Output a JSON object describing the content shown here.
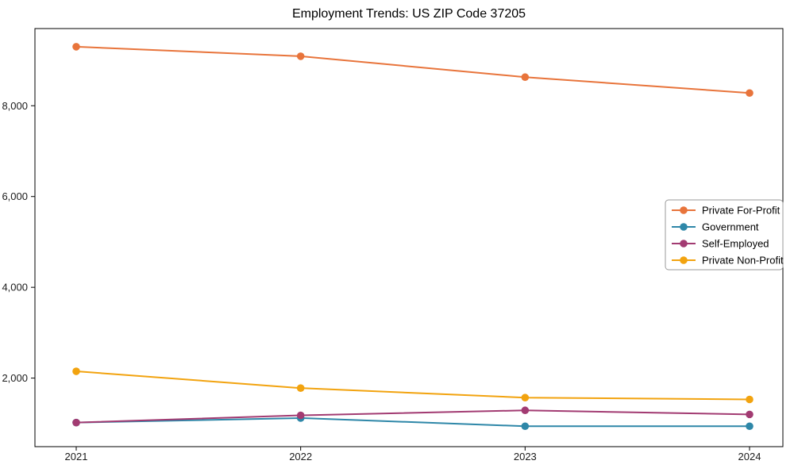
{
  "chart_data": {
    "type": "line",
    "title": "Employment Trends: US ZIP Code 37205",
    "xlabel": "",
    "ylabel": "",
    "categories": [
      "2021",
      "2022",
      "2023",
      "2024"
    ],
    "series": [
      {
        "name": "Private For-Profit",
        "color": "#e8743b",
        "values": [
          9300,
          9090,
          8630,
          8280
        ]
      },
      {
        "name": "Government",
        "color": "#2e87a8",
        "values": [
          1020,
          1120,
          940,
          940
        ]
      },
      {
        "name": "Self-Employed",
        "color": "#a23b72",
        "values": [
          1020,
          1180,
          1290,
          1200
        ]
      },
      {
        "name": "Private Non-Profit",
        "color": "#f2a30f",
        "values": [
          2150,
          1780,
          1570,
          1530
        ]
      }
    ],
    "ylim": [
      560,
      9700
    ],
    "ytick_values": [
      2000,
      4000,
      6000,
      8000
    ],
    "ytick_labels": [
      "2,000",
      "4,000",
      "6,000",
      "8,000"
    ],
    "legend_position": "center right",
    "grid": false,
    "marker": "circle",
    "line_width": 2,
    "marker_radius": 4.8,
    "axis_color": "#000000",
    "tick_label_color": "#1a1a1a",
    "legend_border_color": "#999999",
    "background_color": "#ffffff"
  }
}
